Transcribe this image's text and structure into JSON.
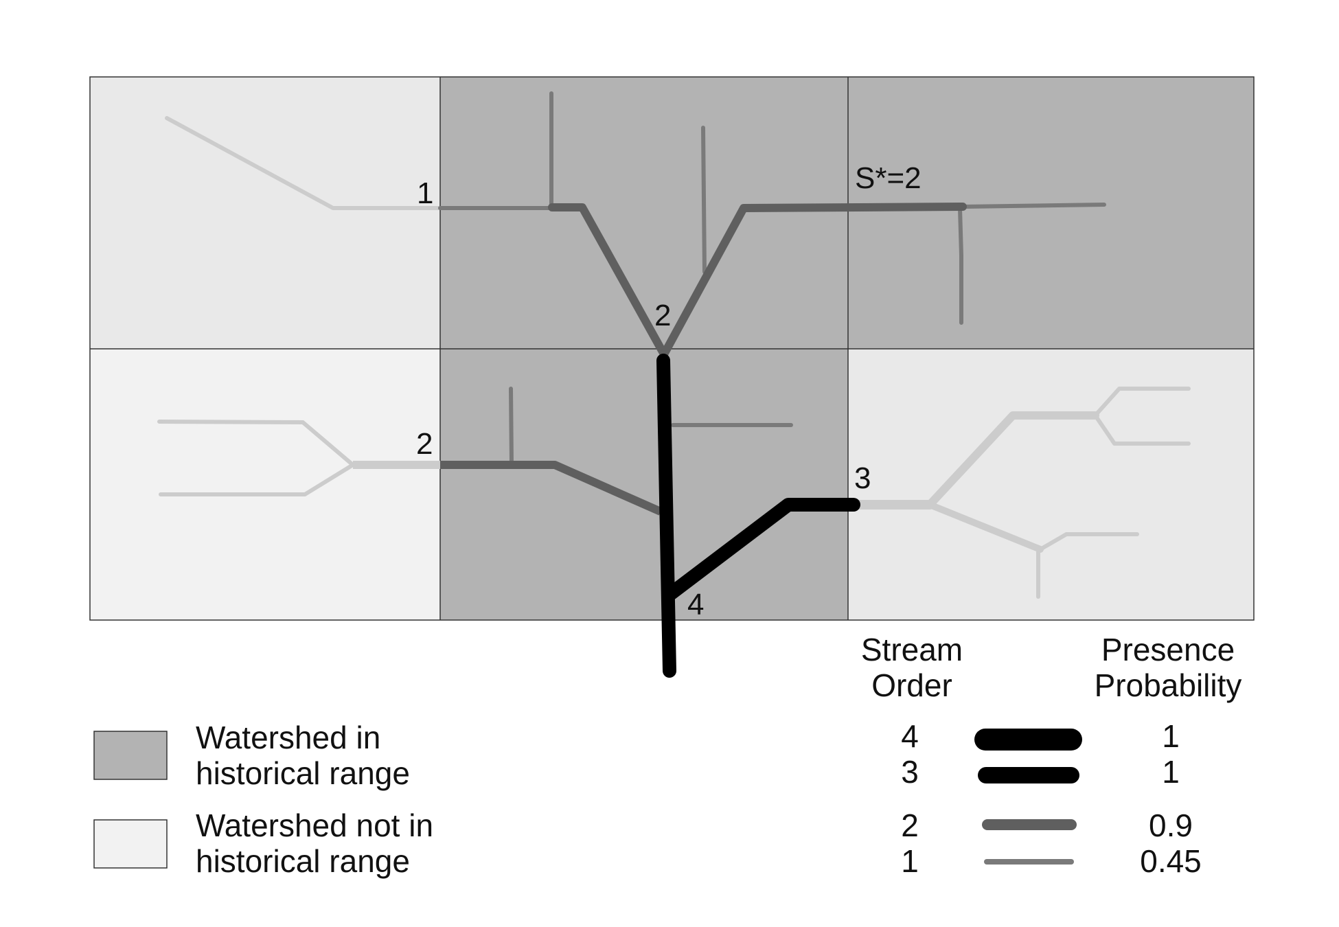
{
  "diagram": {
    "map_labels": {
      "order_1_top": "1",
      "junction_2": "2",
      "s_star": "S*=2",
      "order_2_left": "2",
      "order_3_right": "3",
      "order_4_outlet": "4"
    },
    "legend": {
      "in_range_label_line1": "Watershed in",
      "in_range_label_line2": "historical range",
      "not_in_range_label_line1": "Watershed not in",
      "not_in_range_label_line2": "historical range",
      "stream_order_header_line1": "Stream",
      "stream_order_header_line2": "Order",
      "presence_header_line1": "Presence",
      "presence_header_line2": "Probability",
      "rows": [
        {
          "order": "4",
          "probability": "1"
        },
        {
          "order": "3",
          "probability": "1"
        },
        {
          "order": "2",
          "probability": "0.9"
        },
        {
          "order": "1",
          "probability": "0.45"
        }
      ]
    },
    "colors": {
      "watershed_in_range": "#b3b3b3",
      "watershed_not_in_range_light": "#f2f2f2",
      "watershed_not_in_range_mid": "#e9e9e9",
      "stream_order_4": "#000000",
      "stream_order_3": "#000000",
      "stream_order_2": "#5f5f5f",
      "stream_order_1": "#7a7a7a",
      "stream_out_of_range": "#cccccc",
      "grid_line": "#333333"
    }
  }
}
